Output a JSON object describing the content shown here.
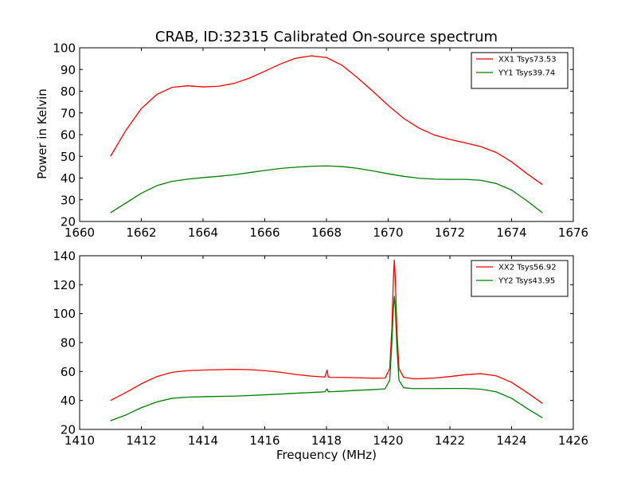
{
  "chart_data": [
    {
      "type": "line",
      "title": "CRAB, ID:32315 Calibrated On-source spectrum",
      "xlabel": "",
      "ylabel": "Power in Kelvin",
      "xlim": [
        1660,
        1676
      ],
      "ylim": [
        20,
        100
      ],
      "xticks": [
        1660,
        1662,
        1664,
        1666,
        1668,
        1670,
        1672,
        1674,
        1676
      ],
      "yticks": [
        20,
        30,
        40,
        50,
        60,
        70,
        80,
        90,
        100
      ],
      "grid": false,
      "legend_position": "top-right",
      "series": [
        {
          "name": "XX1 Tsys73.53",
          "color": "#ff0000",
          "x": [
            1661.0,
            1661.5,
            1662.0,
            1662.5,
            1663.0,
            1663.5,
            1664.0,
            1664.5,
            1665.0,
            1665.5,
            1666.0,
            1666.5,
            1667.0,
            1667.5,
            1668.0,
            1668.5,
            1669.0,
            1669.5,
            1670.0,
            1670.5,
            1671.0,
            1671.5,
            1672.0,
            1672.5,
            1673.0,
            1673.5,
            1674.0,
            1674.5,
            1675.0
          ],
          "y": [
            50.0,
            62.0,
            72.0,
            78.5,
            81.8,
            82.5,
            82.0,
            82.3,
            83.6,
            86.0,
            89.2,
            92.5,
            95.2,
            96.3,
            95.5,
            92.0,
            86.3,
            80.0,
            73.5,
            67.5,
            63.0,
            59.8,
            57.8,
            56.2,
            54.5,
            51.8,
            47.5,
            42.0,
            37.0
          ]
        },
        {
          "name": "YY1 Tsys39.74",
          "color": "#008000",
          "x": [
            1661.0,
            1661.5,
            1662.0,
            1662.5,
            1663.0,
            1663.5,
            1664.0,
            1664.5,
            1665.0,
            1665.5,
            1666.0,
            1666.5,
            1667.0,
            1667.5,
            1668.0,
            1668.5,
            1669.0,
            1669.5,
            1670.0,
            1670.5,
            1671.0,
            1671.5,
            1672.0,
            1672.5,
            1673.0,
            1673.5,
            1674.0,
            1674.5,
            1675.0
          ],
          "y": [
            24.0,
            28.5,
            33.0,
            36.5,
            38.5,
            39.5,
            40.2,
            40.8,
            41.5,
            42.5,
            43.5,
            44.4,
            45.0,
            45.4,
            45.6,
            45.3,
            44.5,
            43.3,
            42.0,
            40.8,
            39.9,
            39.5,
            39.4,
            39.4,
            39.0,
            37.5,
            34.5,
            29.5,
            24.0
          ]
        }
      ]
    },
    {
      "type": "line",
      "title": "",
      "xlabel": "Frequency (MHz)",
      "ylabel": "",
      "xlim": [
        1410,
        1426
      ],
      "ylim": [
        20,
        140
      ],
      "xticks": [
        1410,
        1412,
        1414,
        1416,
        1418,
        1420,
        1422,
        1424,
        1426
      ],
      "yticks": [
        20,
        40,
        60,
        80,
        100,
        120,
        140
      ],
      "grid": false,
      "legend_position": "top-right",
      "series": [
        {
          "name": "XX2 Tsys56.92",
          "color": "#ff0000",
          "x": [
            1411.0,
            1411.5,
            1412.0,
            1412.5,
            1413.0,
            1413.5,
            1414.0,
            1414.5,
            1415.0,
            1415.5,
            1416.0,
            1416.5,
            1417.0,
            1417.5,
            1417.95,
            1418.02,
            1418.06,
            1418.1,
            1418.5,
            1419.0,
            1419.5,
            1419.9,
            1420.05,
            1420.12,
            1420.17,
            1420.2,
            1420.23,
            1420.28,
            1420.35,
            1420.5,
            1420.8,
            1421.0,
            1421.5,
            1422.0,
            1422.5,
            1423.0,
            1423.5,
            1424.0,
            1424.5,
            1425.0
          ],
          "y": [
            40.0,
            45.5,
            51.5,
            56.5,
            59.5,
            60.6,
            61.0,
            61.3,
            61.5,
            61.3,
            60.6,
            59.5,
            58.0,
            56.8,
            56.2,
            61.0,
            56.2,
            56.0,
            55.9,
            55.7,
            55.4,
            55.5,
            62.0,
            90.0,
            125.0,
            137.0,
            125.0,
            90.0,
            62.0,
            56.0,
            55.0,
            55.0,
            55.5,
            56.5,
            57.8,
            58.5,
            57.0,
            52.5,
            45.5,
            38.0
          ]
        },
        {
          "name": "YY2 Tsys43.95",
          "color": "#008000",
          "x": [
            1411.0,
            1411.5,
            1412.0,
            1412.5,
            1413.0,
            1413.5,
            1414.0,
            1414.5,
            1415.0,
            1415.5,
            1416.0,
            1416.5,
            1417.0,
            1417.5,
            1417.95,
            1418.02,
            1418.06,
            1418.1,
            1418.5,
            1419.0,
            1419.5,
            1419.9,
            1420.05,
            1420.12,
            1420.17,
            1420.2,
            1420.23,
            1420.28,
            1420.35,
            1420.5,
            1420.8,
            1421.0,
            1421.5,
            1422.0,
            1422.5,
            1423.0,
            1423.5,
            1424.0,
            1424.5,
            1425.0
          ],
          "y": [
            26.0,
            30.0,
            35.0,
            39.0,
            41.5,
            42.3,
            42.6,
            42.8,
            43.0,
            43.4,
            43.9,
            44.4,
            45.0,
            45.5,
            46.0,
            48.0,
            46.0,
            46.0,
            46.4,
            47.0,
            47.5,
            48.0,
            54.0,
            80.0,
            104.0,
            112.0,
            104.0,
            78.0,
            54.0,
            48.8,
            48.2,
            48.2,
            48.2,
            48.3,
            48.3,
            47.8,
            46.0,
            41.5,
            34.5,
            28.0
          ]
        }
      ]
    }
  ]
}
